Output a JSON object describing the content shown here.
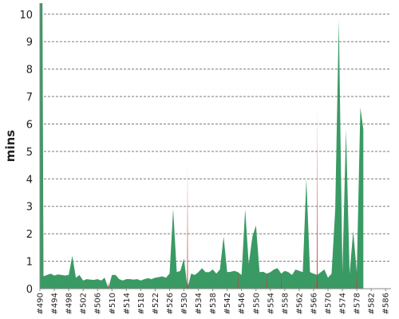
{
  "chart_data": {
    "type": "area",
    "ylabel": "mins",
    "ylim": [
      0,
      10.4
    ],
    "yticks": [
      0,
      1,
      2,
      3,
      4,
      5,
      6,
      7,
      8,
      9,
      10
    ],
    "grid": true,
    "legend": "none",
    "xticks": [
      "#490",
      "#494",
      "#498",
      "#502",
      "#506",
      "#510",
      "#514",
      "#518",
      "#522",
      "#526",
      "#530",
      "#534",
      "#538",
      "#542",
      "#546",
      "#550",
      "#554",
      "#558",
      "#562",
      "#566",
      "#570",
      "#574",
      "#578",
      "#582",
      "#586"
    ],
    "series": [
      {
        "color": "#3a9a64",
        "points": [
          [
            490,
            10.4
          ],
          [
            490.7,
            10.4
          ],
          [
            491,
            0.45
          ],
          [
            492,
            0.5
          ],
          [
            493,
            0.55
          ],
          [
            494,
            0.48
          ],
          [
            495,
            0.52
          ],
          [
            496,
            0.5
          ],
          [
            497,
            0.48
          ],
          [
            498,
            0.5
          ],
          [
            499,
            1.2
          ],
          [
            500,
            0.4
          ],
          [
            501,
            0.5
          ],
          [
            502,
            0.3
          ],
          [
            503,
            0.35
          ],
          [
            504,
            0.33
          ],
          [
            505,
            0.32
          ],
          [
            506,
            0.35
          ],
          [
            507,
            0.3
          ],
          [
            508,
            0.4
          ],
          [
            509,
            0.02
          ],
          [
            510,
            0.5
          ],
          [
            511,
            0.5
          ],
          [
            512,
            0.35
          ],
          [
            513,
            0.3
          ],
          [
            514,
            0.35
          ],
          [
            515,
            0.35
          ],
          [
            516,
            0.33
          ],
          [
            517,
            0.35
          ],
          [
            518,
            0.3
          ],
          [
            519,
            0.35
          ],
          [
            520,
            0.38
          ],
          [
            521,
            0.35
          ],
          [
            522,
            0.4
          ],
          [
            523,
            0.42
          ],
          [
            524,
            0.45
          ],
          [
            525,
            0.4
          ],
          [
            526,
            0.55
          ],
          [
            527,
            2.9
          ],
          [
            528,
            0.6
          ],
          [
            529,
            0.65
          ],
          [
            530,
            1.1
          ],
          [
            531,
            0.02
          ],
          [
            532,
            0.55
          ],
          [
            533,
            0.5
          ],
          [
            534,
            0.6
          ],
          [
            535,
            0.75
          ],
          [
            536,
            0.6
          ],
          [
            537,
            0.6
          ],
          [
            538,
            0.7
          ],
          [
            539,
            0.55
          ],
          [
            540,
            0.7
          ],
          [
            541,
            1.9
          ],
          [
            542,
            0.6
          ],
          [
            543,
            0.62
          ],
          [
            544,
            0.65
          ],
          [
            545,
            0.6
          ],
          [
            546,
            0.5
          ],
          [
            547,
            2.9
          ],
          [
            548,
            0.9
          ],
          [
            549,
            1.9
          ],
          [
            550,
            2.3
          ],
          [
            551,
            0.6
          ],
          [
            552,
            0.62
          ],
          [
            553,
            0.55
          ],
          [
            554,
            0.6
          ],
          [
            555,
            0.7
          ],
          [
            556,
            0.75
          ],
          [
            557,
            0.55
          ],
          [
            558,
            0.65
          ],
          [
            559,
            0.6
          ],
          [
            560,
            0.5
          ],
          [
            561,
            0.7
          ],
          [
            562,
            0.65
          ],
          [
            563,
            0.6
          ],
          [
            564,
            4.0
          ],
          [
            565,
            0.6
          ],
          [
            566,
            0.55
          ],
          [
            567,
            0.5
          ],
          [
            568,
            0.6
          ],
          [
            569,
            0.7
          ],
          [
            570,
            0.4
          ],
          [
            571,
            0.55
          ],
          [
            572,
            2.9
          ],
          [
            573,
            9.8
          ],
          [
            574,
            0.6
          ],
          [
            575,
            5.8
          ],
          [
            576,
            0.55
          ],
          [
            577,
            2.1
          ],
          [
            578,
            0.6
          ],
          [
            579,
            6.6
          ],
          [
            579.8,
            5.8
          ]
        ]
      }
    ],
    "highlights": {
      "color": "#cc3b3b",
      "points": [
        [
          509,
          0.25
        ],
        [
          531,
          4.5
        ],
        [
          545,
          0.65
        ],
        [
          553,
          0.62
        ],
        [
          557,
          0.62
        ],
        [
          567,
          6.6
        ],
        [
          578,
          0.65
        ]
      ]
    }
  }
}
